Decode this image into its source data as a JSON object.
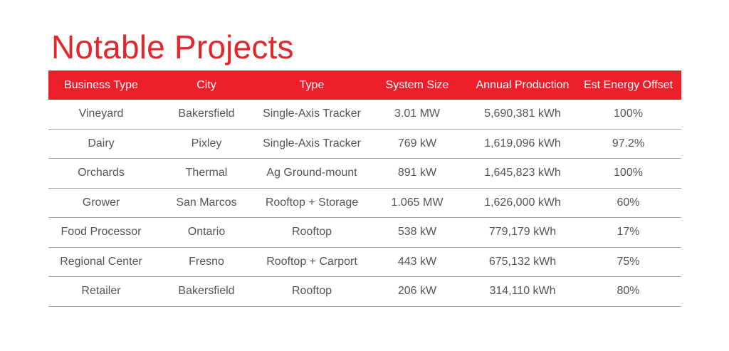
{
  "title": "Notable Projects",
  "table": {
    "headers": [
      "Business Type",
      "City",
      "Type",
      "System Size",
      "Annual Production",
      "Est Energy Offset"
    ],
    "rows": [
      [
        "Vineyard",
        "Bakersfield",
        "Single-Axis Tracker",
        "3.01 MW",
        "5,690,381 kWh",
        "100%"
      ],
      [
        "Dairy",
        "Pixley",
        "Single-Axis Tracker",
        "769 kW",
        "1,619,096 kWh",
        "97.2%"
      ],
      [
        "Orchards",
        "Thermal",
        "Ag Ground-mount",
        "891 kW",
        "1,645,823 kWh",
        "100%"
      ],
      [
        "Grower",
        "San Marcos",
        "Rooftop + Storage",
        "1.065 MW",
        "1,626,000 kWh",
        "60%"
      ],
      [
        "Food Processor",
        "Ontario",
        "Rooftop",
        "538 kW",
        "779,179 kWh",
        "17%"
      ],
      [
        "Regional Center",
        "Fresno",
        "Rooftop + Carport",
        "443 kW",
        "675,132 kWh",
        "75%"
      ],
      [
        "Retailer",
        "Bakersfield",
        "Rooftop",
        "206 kW",
        "314,110 kWh",
        "80%"
      ]
    ]
  },
  "colors": {
    "accent": "#ec1f2a",
    "title": "#e3262c",
    "text": "#555555",
    "rule": "#a8a8a8"
  }
}
